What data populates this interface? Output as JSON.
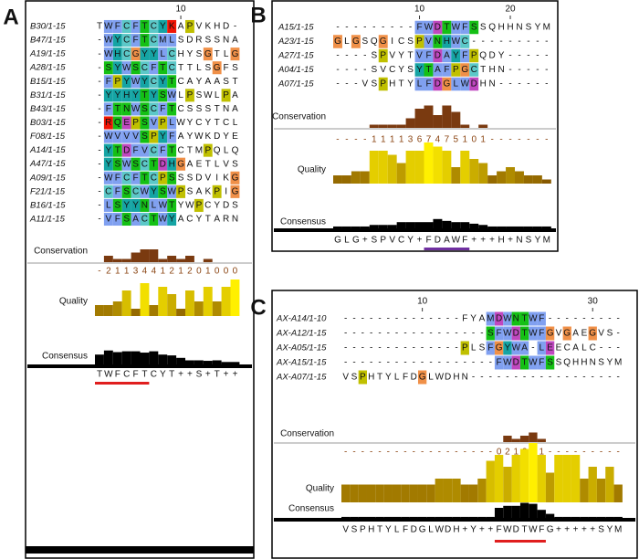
{
  "panels": [
    {
      "label": "A",
      "ruler": [
        10
      ],
      "rows": [
        {
          "name": "B30/1-15",
          "seq": "TWFCFTCYKAPVKHD-"
        },
        {
          "name": "B47/1-15",
          "seq": "-WYCFTCMLSDRSSNA"
        },
        {
          "name": "A19/1-15",
          "seq": "-WHCGYYLCHYSGTLG"
        },
        {
          "name": "A28/1-15",
          "seq": "-SYWSCFTCTTLSGFS"
        },
        {
          "name": "B15/1-15",
          "seq": "-FPYWYCYTCAYAAST"
        },
        {
          "name": "B31/1-15",
          "seq": "-YYHYTYSWLPSWLPA"
        },
        {
          "name": "B43/1-15",
          "seq": "-FTNWSCFTCSSSTNA"
        },
        {
          "name": "B03/1-15",
          "seq": "-RQEPSVPLWYCYTCL"
        },
        {
          "name": "F08/1-15",
          "seq": "-WVVVSPYFAYWKDYE"
        },
        {
          "name": "A14/1-15",
          "seq": "-YTDFVCFTCTMPQLQ"
        },
        {
          "name": "A47/1-15",
          "seq": "-YSWSCTDHGAETLVS"
        },
        {
          "name": "A09/1-15",
          "seq": "-WFCFTCPSSSDVIKG"
        },
        {
          "name": "F21/1-15",
          "seq": "-CFSCWYSWPSAKPIG"
        },
        {
          "name": "B16/1-15",
          "seq": "-LSYYNLWTYWPCYDS"
        },
        {
          "name": "A11/1-15",
          "seq": "-VFSACTWYACYTARN"
        }
      ],
      "annotations": {
        "conservation": "Conservation",
        "quality": "Quality",
        "consensus": "Consensus"
      },
      "conservation": [
        "-",
        2,
        1,
        1,
        3,
        4,
        4,
        1,
        2,
        1,
        2,
        0,
        1,
        0,
        0,
        0
      ],
      "quality": [
        3,
        3,
        4,
        7,
        2,
        9,
        3,
        8,
        6,
        2,
        7,
        4,
        8,
        4,
        8,
        10
      ],
      "consensus_heights": [
        60,
        85,
        75,
        80,
        80,
        72,
        80,
        60,
        55,
        40,
        25,
        25,
        22,
        25,
        15,
        15
      ],
      "consensus": "TWFCFTCYT++S+T++"
    },
    {
      "label": "B",
      "ruler": [
        10,
        20
      ],
      "rows": [
        {
          "name": "A15/1-15",
          "seq": "---------FWDTWFSSQHHNSYM"
        },
        {
          "name": "A23/1-15",
          "seq": "GLGSQGICSPVNHWC---------"
        },
        {
          "name": "A27/1-15",
          "seq": "----SPVYTVFDAYFPQDY-----"
        },
        {
          "name": "A04/1-15",
          "seq": "----SVCYSYTAFPGCTHN-----"
        },
        {
          "name": "A07/1-15",
          "seq": "---VSPHTYLFDGLWDHN------"
        }
      ],
      "annotations": {
        "conservation": "Conservation",
        "quality": "Quality",
        "consensus": "Consensus"
      },
      "conservation": [
        "-",
        "-",
        "-",
        "-",
        1,
        1,
        1,
        1,
        3,
        6,
        7,
        4,
        7,
        5,
        1,
        0,
        1,
        "-",
        "-",
        "-",
        "-",
        "-",
        "-",
        "-"
      ],
      "quality": [
        2,
        2,
        3,
        3,
        8,
        8,
        7,
        5,
        8,
        8,
        10,
        9,
        8,
        4,
        8,
        6,
        5,
        2,
        3,
        4,
        3,
        2,
        2,
        1
      ],
      "consensus_heights": [
        12,
        12,
        12,
        12,
        22,
        22,
        22,
        40,
        40,
        40,
        40,
        60,
        48,
        40,
        40,
        30,
        22,
        12,
        12,
        12,
        12,
        12,
        12,
        12
      ],
      "consensus": "GLG+SPVCY+FDAWF+++H+NSYM"
    },
    {
      "label": "C",
      "ruler": [
        10,
        30
      ],
      "rows": [
        {
          "name": "AX-A14/1-10",
          "seq": "--------------FYAMDWNTWF---------"
        },
        {
          "name": "AX-A12/1-15",
          "seq": "-----------------SFWDTWFGVGAEGVS-"
        },
        {
          "name": "AX-A05/1-15",
          "seq": "--------------PLSFGYWA-LEECALC---"
        },
        {
          "name": "AX-A15/1-15",
          "seq": "------------------FWDTWFSSQHHNSYM"
        },
        {
          "name": "AX-A07/1-15",
          "seq": "VSPHTYLFDGLWDHN------------------"
        }
      ],
      "annotations": {
        "conservation": "Conservation",
        "quality": "Quality",
        "consensus": "Consensus"
      },
      "conservation": [
        "-",
        "-",
        "-",
        "-",
        "-",
        "-",
        "-",
        "-",
        "-",
        "-",
        "-",
        "-",
        "-",
        "-",
        "-",
        "-",
        "-",
        "-",
        0,
        2,
        1,
        2,
        3,
        1,
        "-",
        "-",
        "-",
        "-",
        "-",
        "-",
        "-",
        "-",
        "-"
      ],
      "quality": [
        3,
        3,
        3,
        3,
        3,
        3,
        3,
        3,
        3,
        3,
        3,
        4,
        4,
        4,
        3,
        3,
        4,
        7,
        8,
        6,
        8,
        9,
        10,
        8,
        5,
        8,
        8,
        8,
        4,
        6,
        4,
        6,
        3
      ],
      "consensus_heights": [
        5,
        5,
        5,
        5,
        5,
        5,
        5,
        5,
        5,
        5,
        5,
        5,
        5,
        5,
        5,
        5,
        5,
        5,
        50,
        60,
        60,
        75,
        70,
        40,
        20,
        5,
        5,
        5,
        5,
        5,
        5,
        5,
        5
      ],
      "consensus": "VSPHTYLFDGLWDH+Y++FWDTWFG+++++SYM"
    }
  ]
}
